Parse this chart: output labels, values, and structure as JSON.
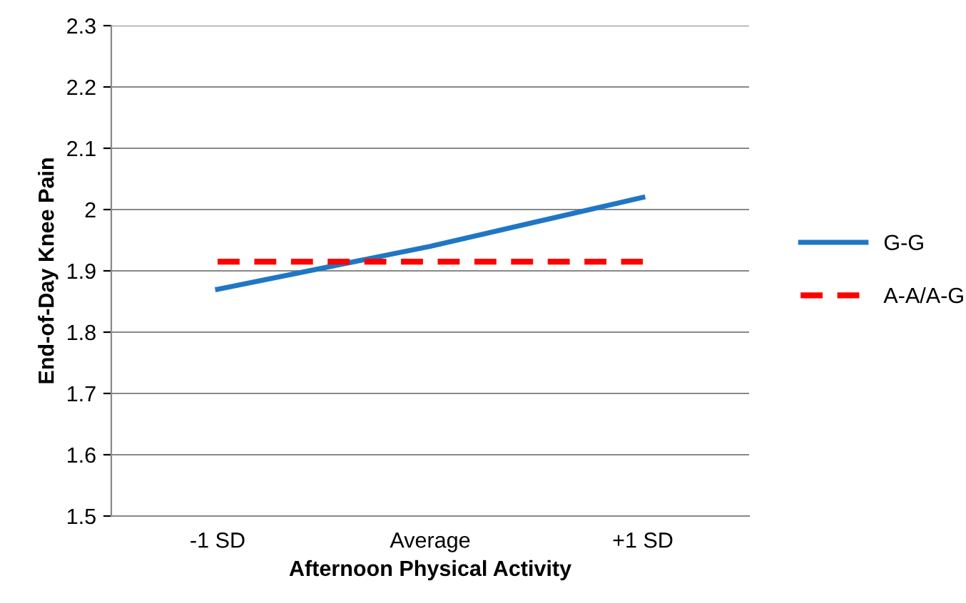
{
  "chart_data": {
    "type": "line",
    "xlabel": "Afternoon Physical Activity",
    "ylabel": "End-of-Day Knee Pain",
    "categories": [
      "-1 SD",
      "Average",
      "+1 SD"
    ],
    "series": [
      {
        "name": "G-G",
        "color": "#1f77c4",
        "values": [
          1.87,
          1.94,
          2.02
        ],
        "line_style": "solid"
      },
      {
        "name": "A-A/A-G",
        "color": "#ff0000",
        "values": [
          1.915,
          1.915,
          1.915
        ],
        "line_style": "dashed"
      }
    ],
    "ylim": [
      1.5,
      2.3
    ],
    "yticks": [
      1.5,
      1.6,
      1.7,
      1.8,
      1.9,
      {
        "value": 2.0,
        "label": "2"
      },
      2.1,
      2.2,
      2.3
    ],
    "grid": "y",
    "legend": "right",
    "marker": "none"
  }
}
